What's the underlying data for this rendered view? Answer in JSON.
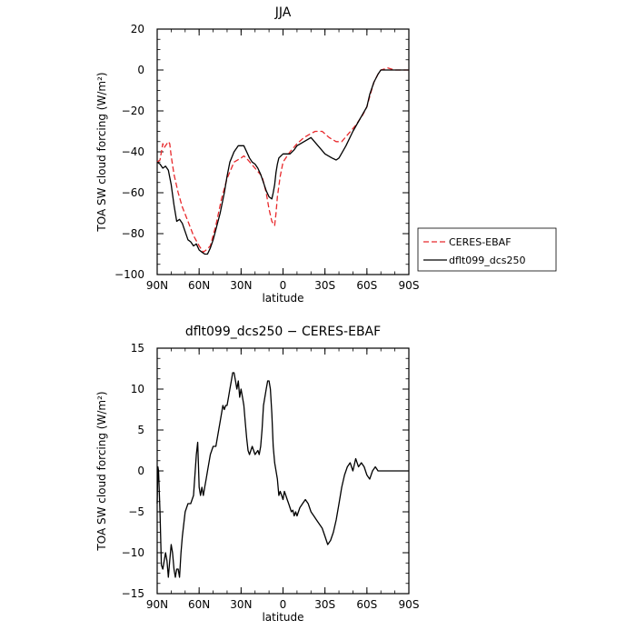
{
  "chart_data": [
    {
      "type": "line",
      "title": "JJA",
      "xlabel": "latitude",
      "ylabel": "TOA SW cloud forcing (W/m²)",
      "xlim": [
        90,
        -90
      ],
      "ylim": [
        -100,
        20
      ],
      "x_ticks": [
        90,
        60,
        30,
        0,
        -30,
        -60,
        -90
      ],
      "x_tick_labels": [
        "90N",
        "60N",
        "30N",
        "0",
        "30S",
        "60S",
        "90S"
      ],
      "y_ticks": [
        20,
        0,
        -20,
        -40,
        -60,
        -80,
        -100
      ],
      "y_tick_labels": [
        "20",
        "0",
        "−20",
        "−40",
        "−60",
        "−80",
        "−100"
      ],
      "legend_position": "right",
      "series": [
        {
          "name": "CERES-EBAF",
          "color": "#e8292c",
          "dash": "dashed",
          "x": [
            90,
            88,
            86,
            85,
            84,
            82,
            81,
            80,
            78,
            75,
            72,
            68,
            64,
            60,
            57,
            55,
            52,
            48,
            44,
            40,
            35,
            30,
            28,
            25,
            20,
            15,
            12,
            10,
            8,
            6,
            5,
            4,
            2,
            0,
            -5,
            -10,
            -15,
            -20,
            -23,
            -28,
            -33,
            -38,
            -42,
            -47,
            -52,
            -57,
            -60,
            -62,
            -65,
            -68,
            -70,
            -75,
            -80,
            -85,
            -90
          ],
          "y": [
            -45,
            -44,
            -36,
            -38,
            -37,
            -35,
            -36,
            -42,
            -51,
            -60,
            -67,
            -74,
            -81,
            -86,
            -89,
            -88,
            -86,
            -76,
            -63,
            -53,
            -45,
            -43,
            -42,
            -44,
            -48,
            -52,
            -60,
            -68,
            -74,
            -76,
            -70,
            -62,
            -52,
            -45,
            -40,
            -36,
            -33,
            -31,
            -30,
            -30,
            -33,
            -35,
            -35,
            -31,
            -27,
            -22,
            -18,
            -13,
            -6,
            -2,
            0,
            1,
            0,
            0,
            0
          ]
        },
        {
          "name": "dflt099_dcs250",
          "color": "#000000",
          "dash": "solid",
          "x": [
            90,
            88,
            86,
            84,
            82,
            80,
            78,
            76,
            74,
            72,
            70,
            68,
            66,
            64,
            62,
            60,
            58,
            56,
            54,
            52,
            50,
            48,
            45,
            42,
            40,
            38,
            35,
            32,
            30,
            28,
            26,
            24,
            22,
            20,
            18,
            16,
            14,
            12,
            10,
            8,
            7,
            6,
            5,
            4,
            3,
            0,
            -5,
            -8,
            -10,
            -15,
            -20,
            -25,
            -30,
            -35,
            -38,
            -40,
            -45,
            -50,
            -55,
            -60,
            -62,
            -65,
            -68,
            -70,
            -75,
            -80,
            -85,
            -90
          ],
          "y": [
            -45,
            -46,
            -48,
            -47,
            -49,
            -56,
            -66,
            -74,
            -73,
            -75,
            -79,
            -83,
            -84,
            -86,
            -85,
            -88,
            -89,
            -90,
            -90,
            -87,
            -83,
            -78,
            -70,
            -60,
            -52,
            -45,
            -40,
            -37,
            -37,
            -37,
            -40,
            -43,
            -45,
            -46,
            -48,
            -51,
            -55,
            -59,
            -62,
            -63,
            -60,
            -56,
            -50,
            -46,
            -43,
            -41,
            -41,
            -39,
            -37,
            -35,
            -33,
            -37,
            -41,
            -43,
            -44,
            -43,
            -37,
            -30,
            -24,
            -18,
            -12,
            -6,
            -2,
            0,
            0,
            0,
            0,
            0
          ]
        }
      ]
    },
    {
      "type": "line",
      "title": "dflt099_dcs250 − CERES-EBAF",
      "xlabel": "latitude",
      "ylabel": "TOA SW cloud forcing (W/m²)",
      "xlim": [
        90,
        -90
      ],
      "ylim": [
        -15,
        15
      ],
      "x_ticks": [
        90,
        60,
        30,
        0,
        -30,
        -60,
        -90
      ],
      "x_tick_labels": [
        "90N",
        "60N",
        "30N",
        "0",
        "30S",
        "60S",
        "90S"
      ],
      "y_ticks": [
        15,
        10,
        5,
        0,
        -5,
        -10,
        -15
      ],
      "y_tick_labels": [
        "15",
        "10",
        "5",
        "0",
        "−5",
        "−10",
        "−15"
      ],
      "series": [
        {
          "name": "",
          "color": "#000000",
          "dash": "solid",
          "x": [
            90,
            89.5,
            89,
            88,
            87,
            86,
            85,
            84,
            83,
            82,
            81,
            80,
            79,
            78,
            77,
            76,
            75,
            74,
            73,
            72,
            70,
            68,
            66,
            64,
            62,
            61,
            60,
            59,
            58,
            57,
            56,
            55,
            54,
            52,
            50,
            48,
            46,
            44,
            43,
            42,
            41,
            40,
            39,
            38,
            37,
            36,
            35,
            34,
            33,
            32,
            31,
            30,
            29,
            28,
            27,
            26,
            25,
            24,
            22,
            20,
            18,
            17,
            16,
            15,
            14,
            13,
            12,
            11,
            10,
            9,
            8,
            7,
            6,
            5,
            4,
            3,
            2,
            1,
            0,
            -1,
            -2,
            -3,
            -4,
            -5,
            -6,
            -7,
            -8,
            -9,
            -10,
            -12,
            -14,
            -16,
            -18,
            -20,
            -22,
            -24,
            -26,
            -28,
            -30,
            -32,
            -34,
            -36,
            -38,
            -40,
            -42,
            -44,
            -46,
            -48,
            -50,
            -52,
            -54,
            -56,
            -58,
            -60,
            -62,
            -64,
            -66,
            -68,
            -70,
            -72,
            -74,
            -76,
            -78,
            -80,
            -82,
            -84,
            -86,
            -88,
            -90
          ],
          "y": [
            -4,
            0.5,
            0,
            -5,
            -11.5,
            -12,
            -11,
            -10,
            -11,
            -13,
            -11,
            -9,
            -10,
            -12,
            -13,
            -12,
            -12,
            -13,
            -10,
            -8,
            -5,
            -4,
            -4,
            -3,
            2,
            3.5,
            -2,
            -3,
            -2,
            -3,
            -2,
            -1,
            0,
            2,
            3,
            3,
            5,
            7,
            8,
            7.5,
            8,
            8,
            9,
            10,
            11,
            12,
            12,
            11,
            10,
            11,
            9,
            10,
            9,
            8,
            6,
            4,
            2.5,
            2,
            3,
            2,
            2.5,
            2,
            3,
            5,
            8,
            9,
            10,
            11,
            11,
            10,
            7,
            3,
            1,
            0,
            -1,
            -3,
            -2.5,
            -3,
            -3.5,
            -2.5,
            -3,
            -3.5,
            -4,
            -4.5,
            -5,
            -4.8,
            -5.5,
            -5,
            -5.5,
            -4.5,
            -4,
            -3.5,
            -4,
            -5,
            -5.5,
            -6,
            -6.5,
            -7,
            -8,
            -9,
            -8.5,
            -7.5,
            -6,
            -4,
            -2,
            -0.5,
            0.5,
            1,
            0,
            1.5,
            0.5,
            1,
            0.5,
            -0.5,
            -1,
            0,
            0.5,
            0,
            0,
            0,
            0,
            0,
            0,
            0,
            0,
            0,
            0,
            0,
            0
          ]
        }
      ]
    }
  ]
}
